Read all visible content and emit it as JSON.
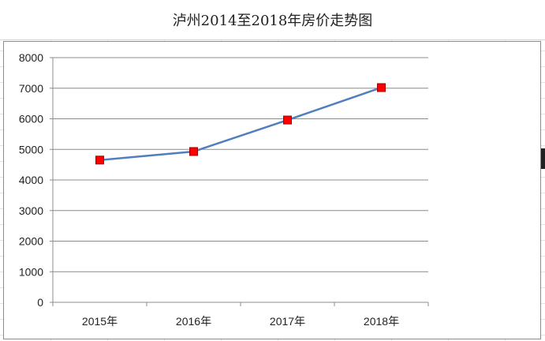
{
  "page": {
    "title": "泸州2014至2018年房价走势图"
  },
  "chart_data": {
    "type": "line",
    "title": "泸州2014至2018年房价走势图",
    "xlabel": "",
    "ylabel": "",
    "categories": [
      "2015年",
      "2016年",
      "2017年",
      "2018年"
    ],
    "series": [
      {
        "values": [
          4650,
          4930,
          5960,
          7020
        ]
      }
    ],
    "ylim": [
      0,
      8000
    ],
    "yticks": [
      "0",
      "1000",
      "2000",
      "3000",
      "4000",
      "5000",
      "6000",
      "7000",
      "8000"
    ],
    "grid": true,
    "line_color": "#4f7fbf",
    "marker_color": "#ff0000",
    "marker_edge_color": "#a00000",
    "gridline_color": "#8c8c8c",
    "legend": "none"
  }
}
